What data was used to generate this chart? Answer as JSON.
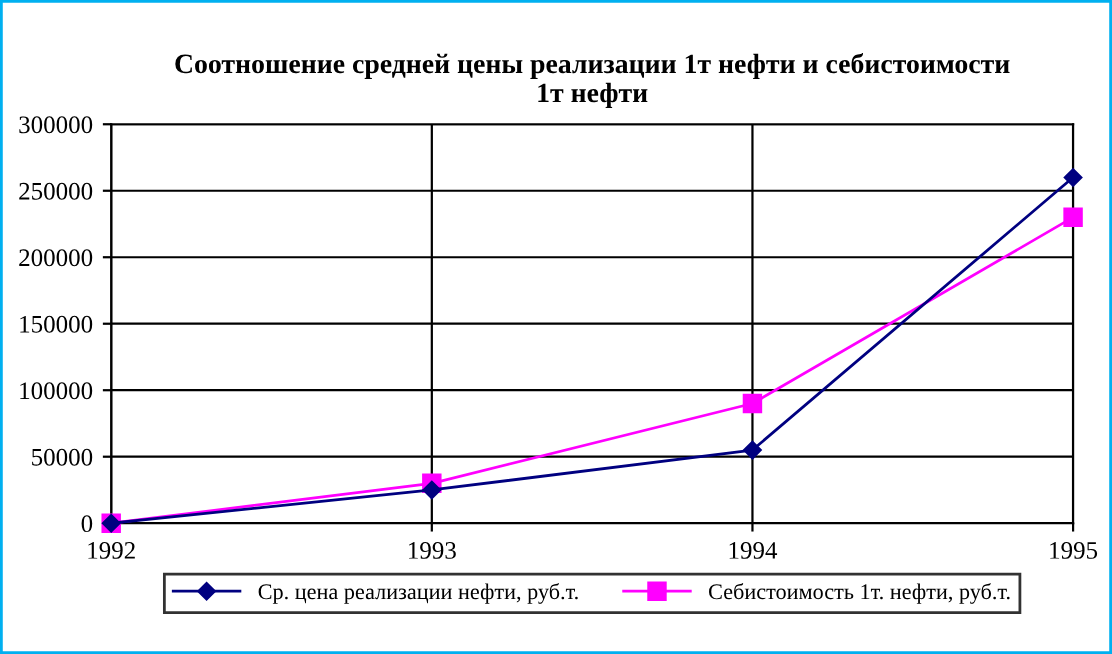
{
  "chart_data": {
    "type": "line",
    "title": "Соотношение средней цены реализации 1т нефти и себистоимости\n1т нефти",
    "categories": [
      "1992",
      "1993",
      "1994",
      "1995"
    ],
    "series": [
      {
        "name": "Ср. цена реализации нефти, руб.т.",
        "color": "#000080",
        "marker": "diamond",
        "values": [
          0,
          25000,
          55000,
          260000
        ]
      },
      {
        "name": "Себистоимость 1т. нефти, руб.т.",
        "color": "#ff00ff",
        "marker": "square",
        "values": [
          0,
          30000,
          90000,
          230000
        ]
      }
    ],
    "ylim": [
      0,
      300000
    ],
    "yticks": [
      0,
      50000,
      100000,
      150000,
      200000,
      250000,
      300000
    ],
    "grid": true,
    "legend": "bottom",
    "line_style": "solid"
  }
}
